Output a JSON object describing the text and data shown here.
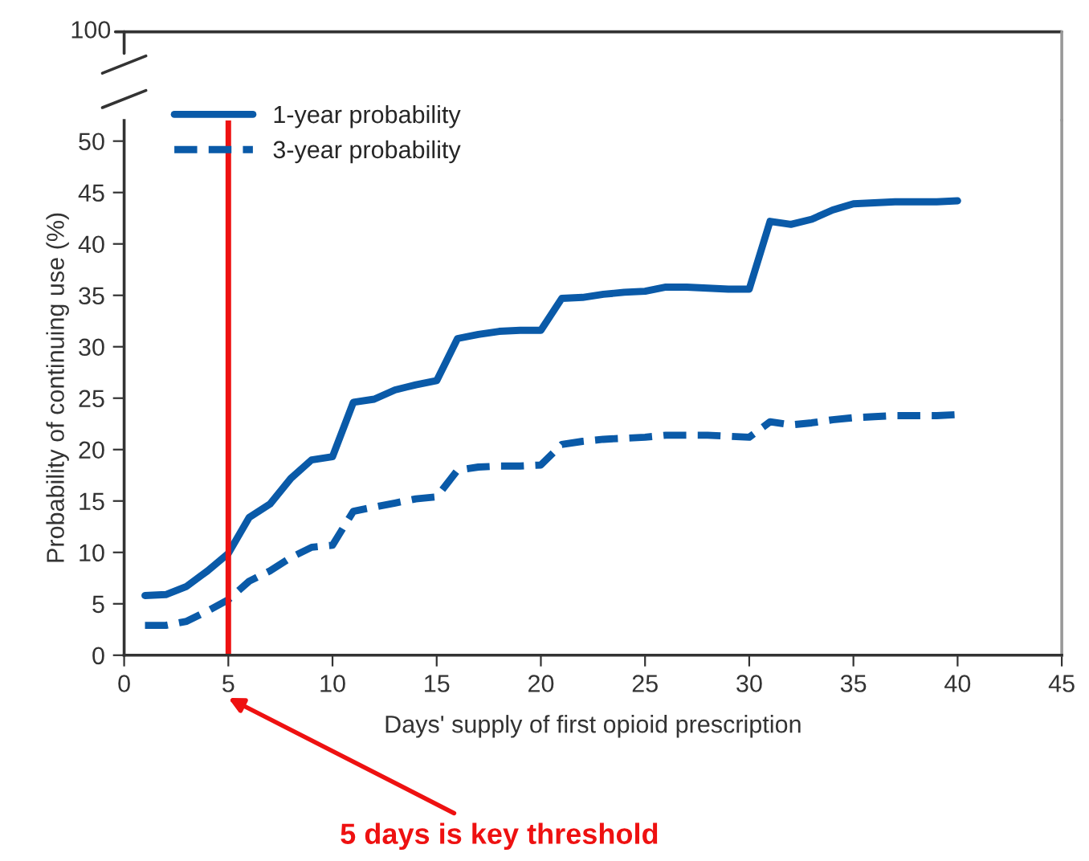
{
  "chart_data": {
    "type": "line",
    "xlabel": "Days' supply of first opioid prescription",
    "ylabel": "Probability of continuing use (%)",
    "xlim": [
      0,
      45
    ],
    "xticks": [
      0,
      5,
      10,
      15,
      20,
      25,
      30,
      35,
      40,
      45
    ],
    "ylim": [
      0,
      52
    ],
    "yticks": [
      0,
      5,
      10,
      15,
      20,
      25,
      30,
      35,
      40,
      45,
      50
    ],
    "grid": false,
    "legend": "top left",
    "marker": "none",
    "x": [
      1,
      2,
      3,
      4,
      5,
      6,
      7,
      8,
      9,
      10,
      11,
      12,
      13,
      14,
      15,
      16,
      17,
      18,
      19,
      20,
      21,
      22,
      23,
      24,
      25,
      26,
      27,
      28,
      29,
      30,
      31,
      32,
      33,
      34,
      35,
      36,
      37,
      38,
      39,
      40
    ],
    "series": [
      {
        "name": "1-year probability",
        "color": "#0a5aa8",
        "line_style": "solid",
        "values": [
          5.8,
          5.9,
          6.7,
          8.2,
          9.9,
          13.4,
          14.7,
          17.2,
          19.0,
          19.3,
          24.6,
          24.9,
          25.8,
          26.3,
          26.7,
          30.8,
          31.2,
          31.5,
          31.6,
          31.6,
          34.7,
          34.8,
          35.1,
          35.3,
          35.4,
          35.8,
          35.8,
          35.7,
          35.6,
          35.6,
          42.2,
          41.9,
          42.4,
          43.3,
          43.9,
          44.0,
          44.1,
          44.1,
          44.1,
          44.2
        ]
      },
      {
        "name": "3-year probability",
        "color": "#0a5aa8",
        "line_style": "dashed",
        "values": [
          2.9,
          2.9,
          3.3,
          4.3,
          5.4,
          7.2,
          8.2,
          9.5,
          10.5,
          10.7,
          14.0,
          14.4,
          14.8,
          15.2,
          15.4,
          18.0,
          18.3,
          18.4,
          18.4,
          18.5,
          20.5,
          20.8,
          21.0,
          21.1,
          21.2,
          21.4,
          21.4,
          21.4,
          21.3,
          21.2,
          22.7,
          22.4,
          22.6,
          22.9,
          23.1,
          23.2,
          23.3,
          23.3,
          23.3,
          23.4
        ]
      }
    ],
    "ref_lines": [
      {
        "axis": "x",
        "value": 5,
        "color": "#ee1111",
        "line_style": "solid"
      }
    ],
    "annotations": [
      "100",
      "5 days is key threshold"
    ]
  }
}
